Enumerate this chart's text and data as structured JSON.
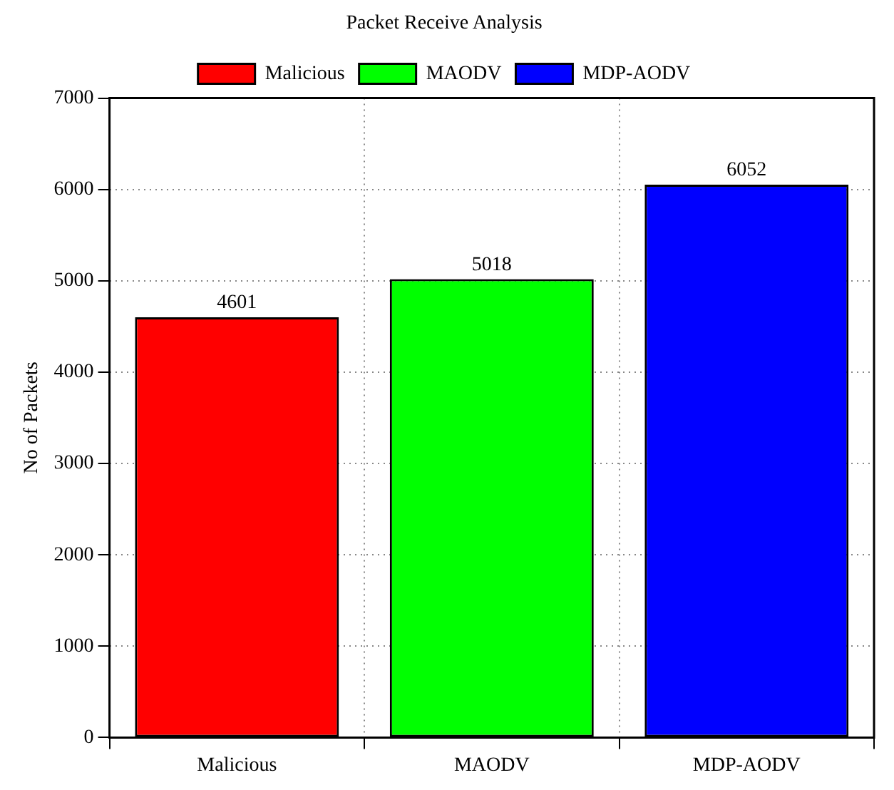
{
  "chart_data": {
    "type": "bar",
    "title": "Packet Receive Analysis",
    "ylabel": "No of Packets",
    "categories": [
      "Malicious",
      "MAODV",
      "MDP-AODV"
    ],
    "series": [
      {
        "name": "Malicious",
        "color": "#ff0000",
        "values": [
          4601,
          null,
          null
        ]
      },
      {
        "name": "MAODV",
        "color": "#00ff00",
        "values": [
          null,
          5018,
          null
        ]
      },
      {
        "name": "MDP-AODV",
        "color": "#0000ff",
        "values": [
          null,
          null,
          6052
        ]
      }
    ],
    "ylim": [
      0,
      7000
    ],
    "yticks": [
      0,
      1000,
      2000,
      3000,
      4000,
      5000,
      6000,
      7000
    ],
    "grid": true,
    "legend": "top",
    "data_labels": true
  }
}
